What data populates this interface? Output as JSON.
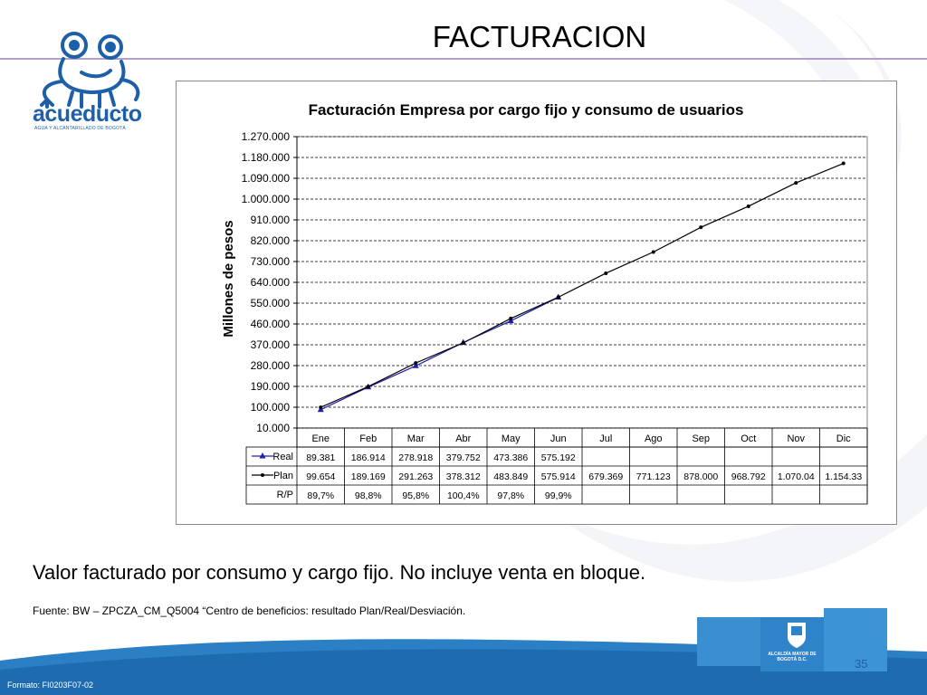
{
  "slide": {
    "title": "FACTURACION",
    "caption": "Valor facturado por consumo y cargo fijo. No incluye venta en bloque.",
    "source": "Fuente:  BW – ZPCZA_CM_Q5004 “Centro de beneficios: resultado Plan/Real/Desviación.",
    "formato": "Formato: FI0203F07-02",
    "page_number": "35"
  },
  "logo": {
    "name": "acueducto",
    "subtitle": "AGUA Y ALCANTARILLADO DE BOGOTÁ",
    "icon": "frog-logo-icon"
  },
  "alcaldia": {
    "text": "ALCALDÍA MAYOR DE BOGOTÁ D.C."
  },
  "colors": {
    "real": "#2020b0",
    "plan": "#000000",
    "brand_blue": "#1d5fa8"
  },
  "chart_data": {
    "type": "line",
    "title": "Facturación Empresa por cargo fijo y consumo de usuarios",
    "ylabel": "Millones de pesos",
    "xlabel": "",
    "ylim": [
      10000,
      1270000
    ],
    "yticks": [
      "1.270.000",
      "1.180.000",
      "1.090.000",
      "1.000.000",
      "910.000",
      "820.000",
      "730.000",
      "640.000",
      "550.000",
      "460.000",
      "370.000",
      "280.000",
      "190.000",
      "100.000",
      "10.000"
    ],
    "ytick_values": [
      1270000,
      1180000,
      1090000,
      1000000,
      910000,
      820000,
      730000,
      640000,
      550000,
      460000,
      370000,
      280000,
      190000,
      100000,
      10000
    ],
    "grid": true,
    "categories": [
      "Ene",
      "Feb",
      "Mar",
      "Abr",
      "May",
      "Jun",
      "Jul",
      "Ago",
      "Sep",
      "Oct",
      "Nov",
      "Dic"
    ],
    "series": [
      {
        "name": "Real",
        "marker": "triangle",
        "values": [
          89381,
          186914,
          278918,
          379752,
          473386,
          575192,
          null,
          null,
          null,
          null,
          null,
          null
        ],
        "labels": [
          "89.381",
          "186.914",
          "278.918",
          "379.752",
          "473.386",
          "575.192",
          "",
          "",
          "",
          "",
          "",
          ""
        ]
      },
      {
        "name": "Plan",
        "marker": "dot",
        "values": [
          99654,
          189169,
          291263,
          378312,
          483849,
          575914,
          679369,
          771123,
          878000,
          968792,
          1070040,
          1154330
        ],
        "labels": [
          "99.654",
          "189.169",
          "291.263",
          "378.312",
          "483.849",
          "575.914",
          "679.369",
          "771.123",
          "878.000",
          "968.792",
          "1.070.04",
          "1.154.33"
        ]
      }
    ],
    "ratio_row": {
      "name": "R/P",
      "labels": [
        "89,7%",
        "98,8%",
        "95,8%",
        "100,4%",
        "97,8%",
        "99,9%",
        "",
        "",
        "",
        "",
        "",
        ""
      ]
    }
  }
}
